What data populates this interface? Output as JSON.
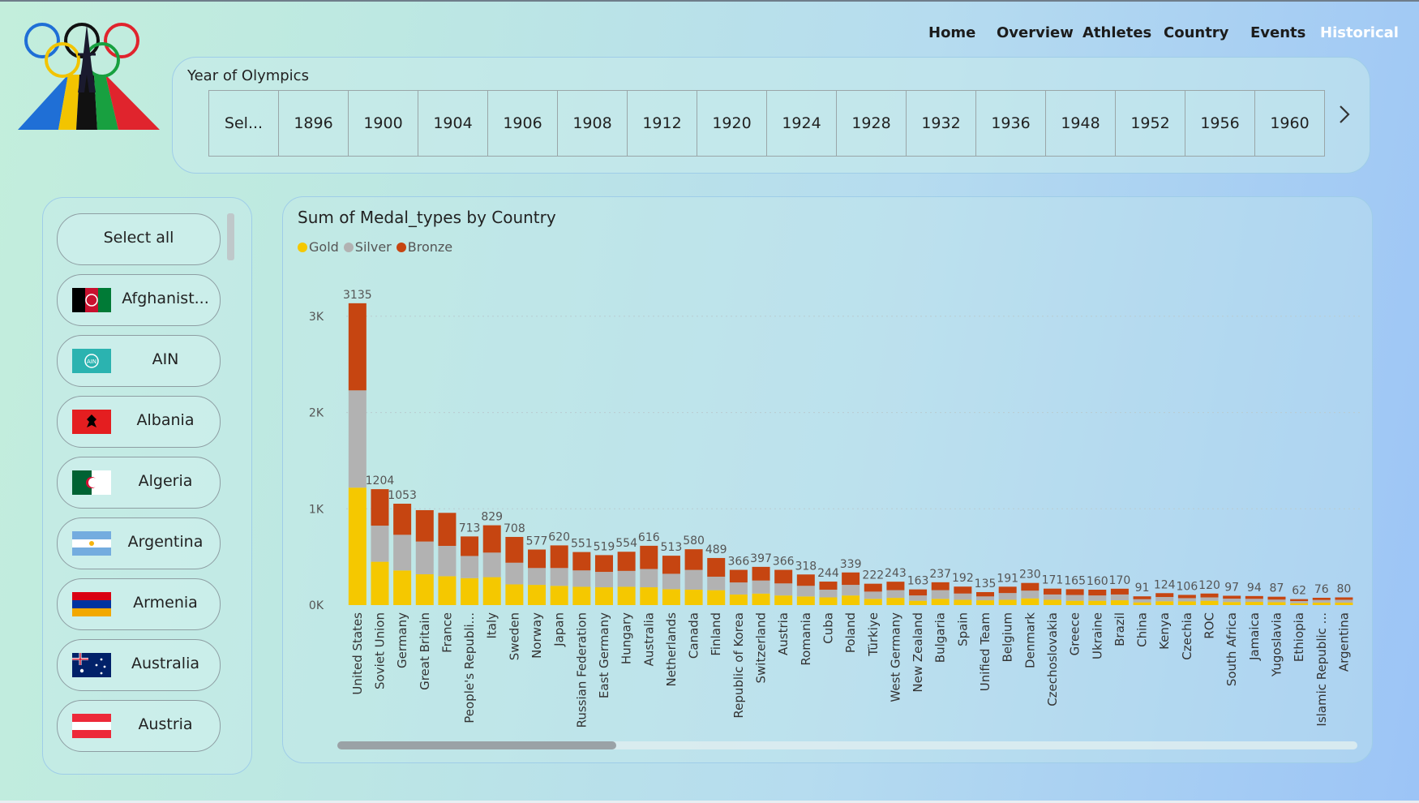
{
  "nav": {
    "home": "Home",
    "overview": "Overview",
    "athletes": "Athletes",
    "country": "Country",
    "events": "Events",
    "historical": "Historical"
  },
  "year_slicer": {
    "title": "Year of Olympics",
    "tiles": [
      "Sel...",
      "1896",
      "1900",
      "1904",
      "1906",
      "1908",
      "1912",
      "1920",
      "1924",
      "1928",
      "1932",
      "1936",
      "1948",
      "1952",
      "1956",
      "1960"
    ]
  },
  "country_slicer": {
    "select_all": "Select all",
    "countries": [
      {
        "label": "Afghanist...",
        "flag": "afghanistan-flag"
      },
      {
        "label": "AIN",
        "flag": "ain-flag"
      },
      {
        "label": "Albania",
        "flag": "albania-flag"
      },
      {
        "label": "Algeria",
        "flag": "algeria-flag"
      },
      {
        "label": "Argentina",
        "flag": "argentina-flag"
      },
      {
        "label": "Armenia",
        "flag": "armenia-flag"
      },
      {
        "label": "Australia",
        "flag": "australia-flag"
      },
      {
        "label": "Austria",
        "flag": "austria-flag"
      }
    ]
  },
  "colors": {
    "gold": "#F5C800",
    "silver": "#B2B2B2",
    "bronze": "#C64511",
    "active_nav": "#FFFFFF"
  },
  "chart_data": {
    "type": "bar",
    "stacked": true,
    "title": "Sum of Medal_types by Country",
    "legend_position": "top-left",
    "yticks": [
      "0K",
      "1K",
      "2K",
      "3K"
    ],
    "ylim": [
      0,
      3300
    ],
    "grid": true,
    "categories": [
      "United States",
      "Soviet Union",
      "Germany",
      "Great Britain",
      "France",
      "People's Republi...",
      "Italy",
      "Sweden",
      "Norway",
      "Japan",
      "Russian Federation",
      "East Germany",
      "Hungary",
      "Australia",
      "Netherlands",
      "Canada",
      "Finland",
      "Republic of Korea",
      "Switzerland",
      "Austria",
      "Romania",
      "Cuba",
      "Poland",
      "Türkiye",
      "West Germany",
      "New Zealand",
      "Bulgaria",
      "Spain",
      "Unified Team",
      "Belgium",
      "Denmark",
      "Czechoslovakia",
      "Greece",
      "Ukraine",
      "Brazil",
      "China",
      "Kenya",
      "Czechia",
      "ROC",
      "South Africa",
      "Jamaica",
      "Yugoslavia",
      "Ethiopia",
      "Islamic Republic ...",
      "Argentina"
    ],
    "totals": [
      3135,
      1204,
      1053,
      986,
      958,
      713,
      829,
      708,
      577,
      620,
      551,
      519,
      554,
      616,
      513,
      580,
      489,
      366,
      397,
      366,
      318,
      244,
      339,
      222,
      243,
      163,
      237,
      192,
      135,
      191,
      230,
      171,
      165,
      160,
      170,
      91,
      124,
      106,
      120,
      97,
      94,
      87,
      62,
      76,
      80
    ],
    "total_labels": [
      "3135",
      "1204",
      "1053",
      "",
      "",
      "713",
      "829",
      "708",
      "577",
      "620",
      "551",
      "519",
      "554",
      "616",
      "513",
      "580",
      "489",
      "366",
      "397",
      "366",
      "318",
      "244",
      "339",
      "222",
      "243",
      "163",
      "237",
      "192",
      "135",
      "191",
      "230",
      "171",
      "165",
      "160",
      "170",
      "91",
      "124",
      "106",
      "120",
      "97",
      "94",
      "87",
      "62",
      "76",
      "80"
    ],
    "series": [
      {
        "name": "Gold",
        "values": [
          1220,
          450,
          360,
          320,
          300,
          280,
          290,
          215,
          210,
          200,
          190,
          185,
          190,
          185,
          165,
          160,
          155,
          110,
          120,
          100,
          90,
          80,
          100,
          65,
          75,
          45,
          65,
          55,
          50,
          55,
          70,
          55,
          45,
          45,
          50,
          28,
          40,
          38,
          45,
          32,
          33,
          30,
          20,
          25,
          25
        ]
      },
      {
        "name": "Silver",
        "values": [
          1010,
          375,
          370,
          340,
          315,
          230,
          255,
          225,
          175,
          185,
          170,
          160,
          165,
          190,
          160,
          205,
          140,
          125,
          135,
          125,
          110,
          80,
          110,
          75,
          80,
          55,
          90,
          65,
          40,
          70,
          80,
          55,
          60,
          55,
          60,
          33,
          44,
          34,
          35,
          35,
          32,
          27,
          22,
          28,
          30
        ]
      },
      {
        "name": "Bronze",
        "values": [
          905,
          379,
          323,
          326,
          343,
          203,
          284,
          268,
          192,
          235,
          191,
          174,
          199,
          241,
          188,
          215,
          194,
          131,
          142,
          141,
          118,
          84,
          129,
          82,
          88,
          63,
          82,
          72,
          45,
          66,
          80,
          61,
          60,
          60,
          60,
          30,
          40,
          34,
          40,
          30,
          29,
          30,
          20,
          23,
          25
        ]
      }
    ]
  }
}
